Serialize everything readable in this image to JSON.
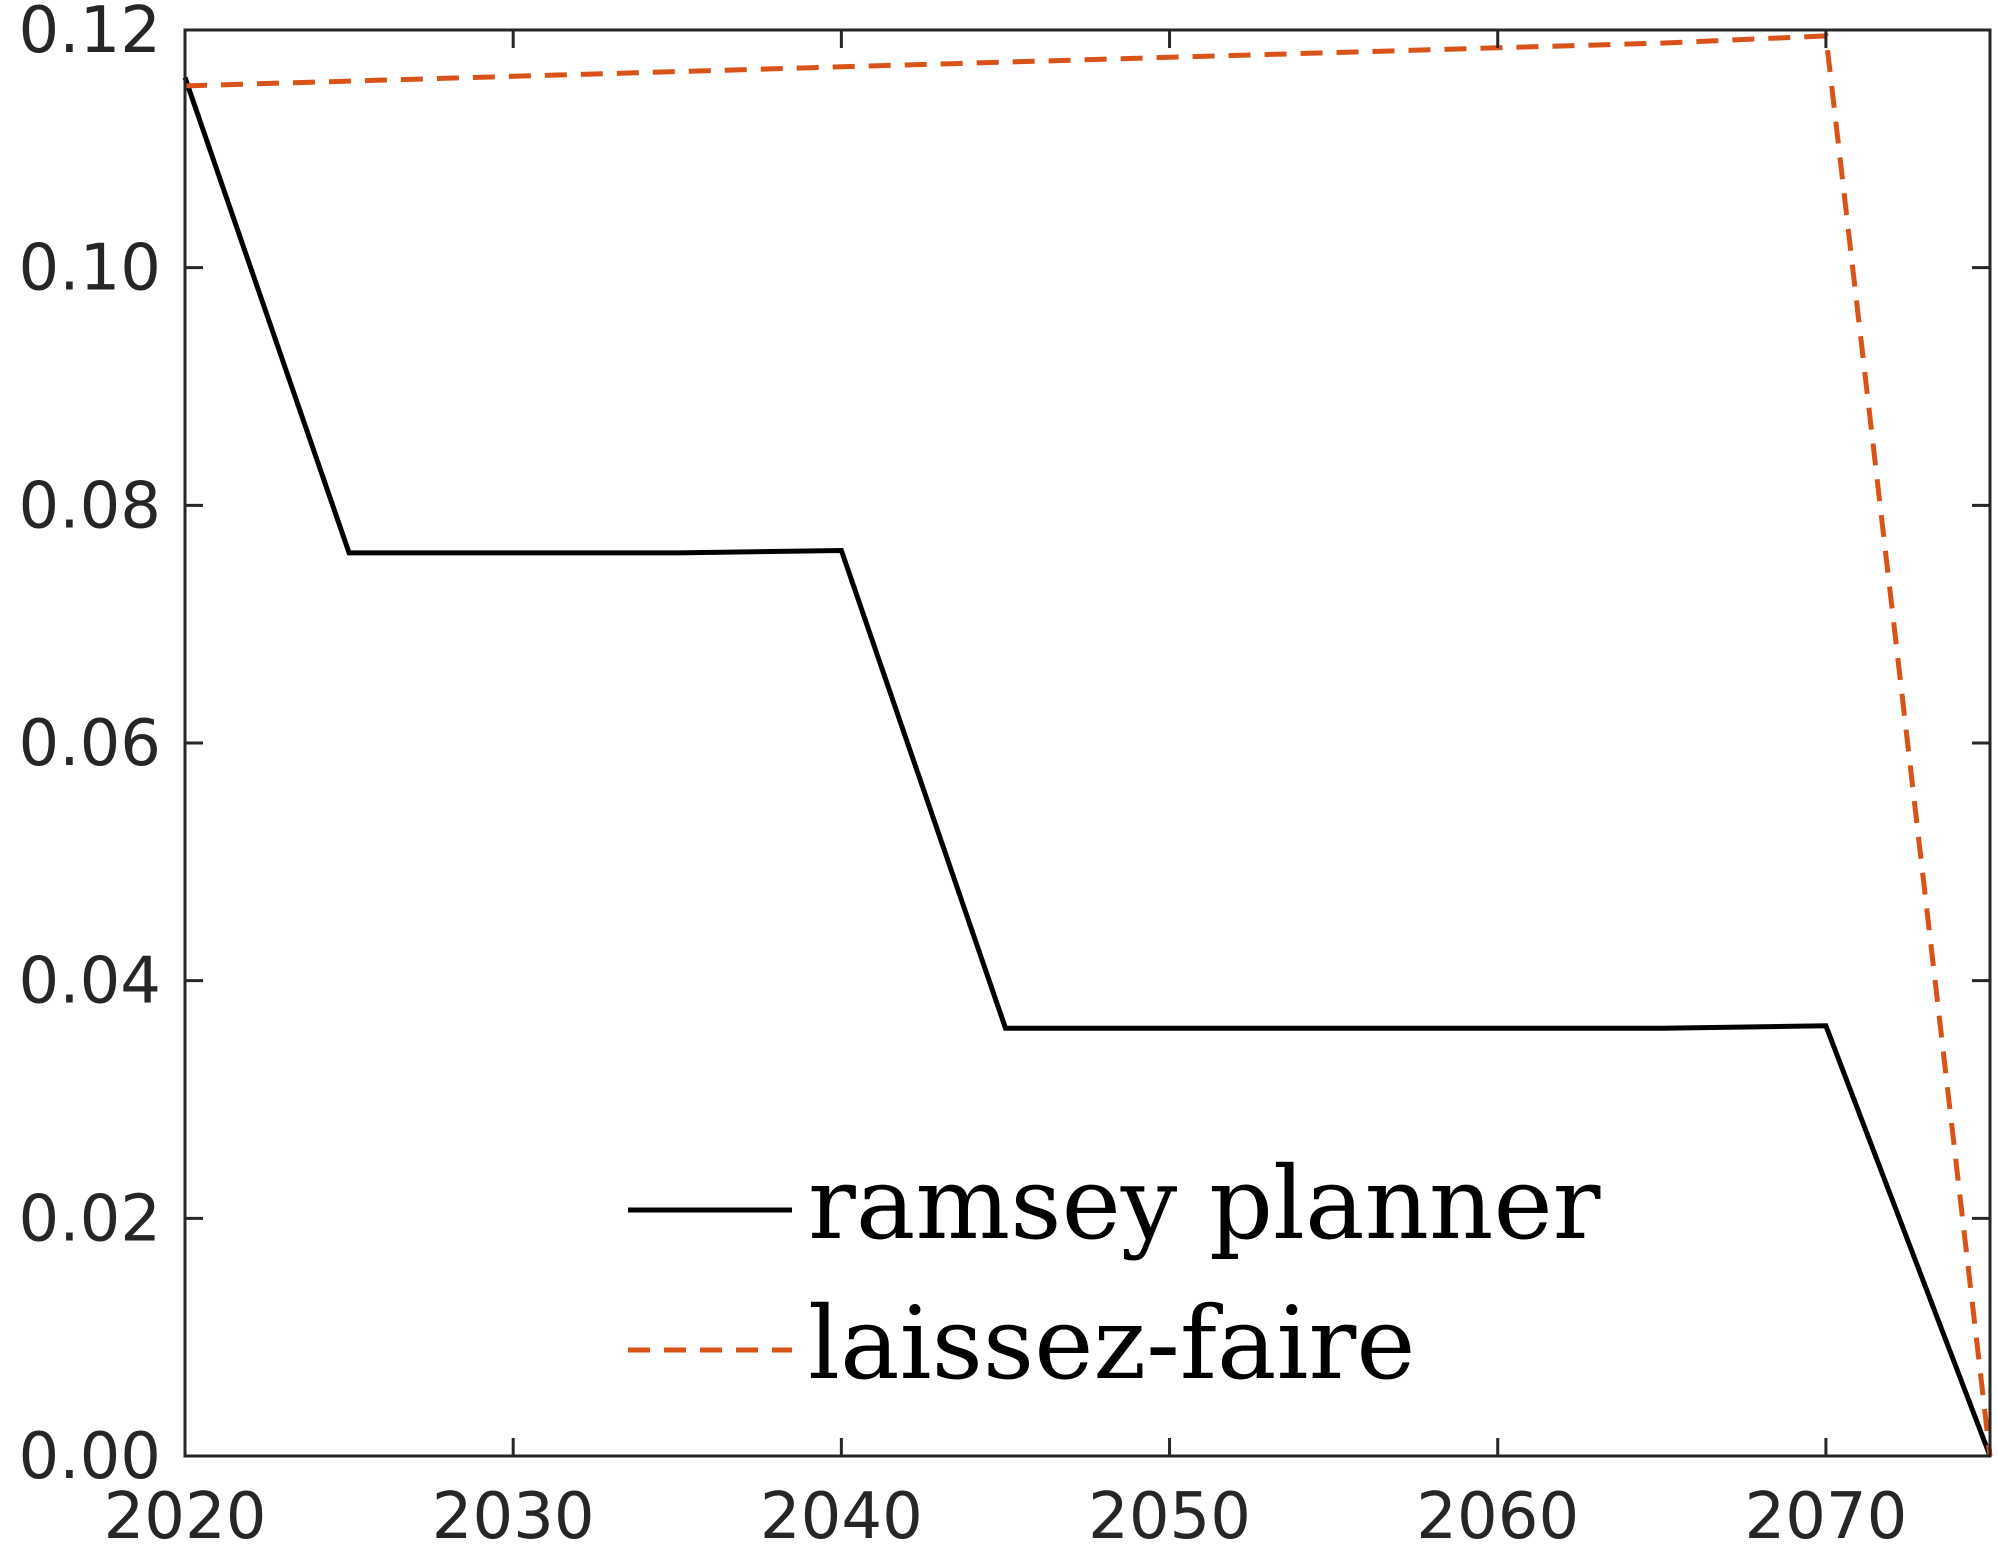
{
  "chart_data": {
    "type": "line",
    "title": "",
    "xlabel": "",
    "ylabel": "",
    "xlim": [
      2020,
      2075
    ],
    "ylim": [
      0,
      0.12
    ],
    "x_ticks": [
      2020,
      2030,
      2040,
      2050,
      2060,
      2070
    ],
    "x_tick_labels": [
      "2020",
      "2030",
      "2040",
      "2050",
      "2060",
      "2070"
    ],
    "y_ticks": [
      0,
      0.02,
      0.04,
      0.06,
      0.08,
      0.1,
      0.12
    ],
    "y_tick_labels": [
      "0.00",
      "0.02",
      "0.04",
      "0.06",
      "0.08",
      "0.10",
      "0.12"
    ],
    "grid": false,
    "legend_position": "bottom-center",
    "series": [
      {
        "name": "ramsey planner",
        "style": "solid",
        "color": "#000000",
        "x": [
          2020,
          2025,
          2030,
          2035,
          2040,
          2045,
          2050,
          2055,
          2060,
          2065,
          2070,
          2075
        ],
        "y": [
          0.116,
          0.076,
          0.076,
          0.076,
          0.0762,
          0.036,
          0.036,
          0.036,
          0.036,
          0.036,
          0.0362,
          0.0
        ]
      },
      {
        "name": "laissez-faire",
        "style": "dashed",
        "color": "#D95319",
        "x": [
          2020,
          2025,
          2030,
          2035,
          2040,
          2045,
          2050,
          2055,
          2060,
          2065,
          2070,
          2075
        ],
        "y": [
          0.1153,
          0.1157,
          0.1161,
          0.1165,
          0.1169,
          0.1173,
          0.1177,
          0.1181,
          0.1185,
          0.1189,
          0.1195,
          0.0
        ]
      }
    ]
  }
}
